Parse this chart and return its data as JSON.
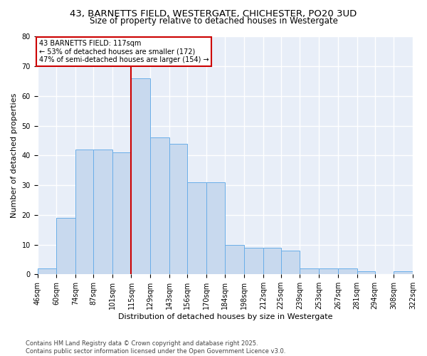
{
  "title_line1": "43, BARNETTS FIELD, WESTERGATE, CHICHESTER, PO20 3UD",
  "title_line2": "Size of property relative to detached houses in Westergate",
  "xlabel": "Distribution of detached houses by size in Westergate",
  "ylabel": "Number of detached properties",
  "bar_color": "#c8d9ee",
  "bar_edgecolor": "#6aaee8",
  "vline_x": 115,
  "vline_color": "#cc0000",
  "annotation_text": "43 BARNETTS FIELD: 117sqm\n← 53% of detached houses are smaller (172)\n47% of semi-detached houses are larger (154) →",
  "bins": [
    46,
    60,
    74,
    87,
    101,
    115,
    129,
    143,
    156,
    170,
    184,
    198,
    212,
    225,
    239,
    253,
    267,
    281,
    294,
    308,
    322
  ],
  "values": [
    2,
    19,
    42,
    42,
    41,
    66,
    46,
    44,
    31,
    31,
    10,
    9,
    9,
    8,
    2,
    2,
    2,
    1,
    0,
    1,
    0
  ],
  "ylim": [
    0,
    80
  ],
  "yticks": [
    0,
    10,
    20,
    30,
    40,
    50,
    60,
    70,
    80
  ],
  "background_color": "#e8eef8",
  "grid_color": "#ffffff",
  "footer_text": "Contains HM Land Registry data © Crown copyright and database right 2025.\nContains public sector information licensed under the Open Government Licence v3.0.",
  "title_fontsize": 9.5,
  "subtitle_fontsize": 8.5,
  "tick_fontsize": 7,
  "label_fontsize": 8,
  "footer_fontsize": 6
}
